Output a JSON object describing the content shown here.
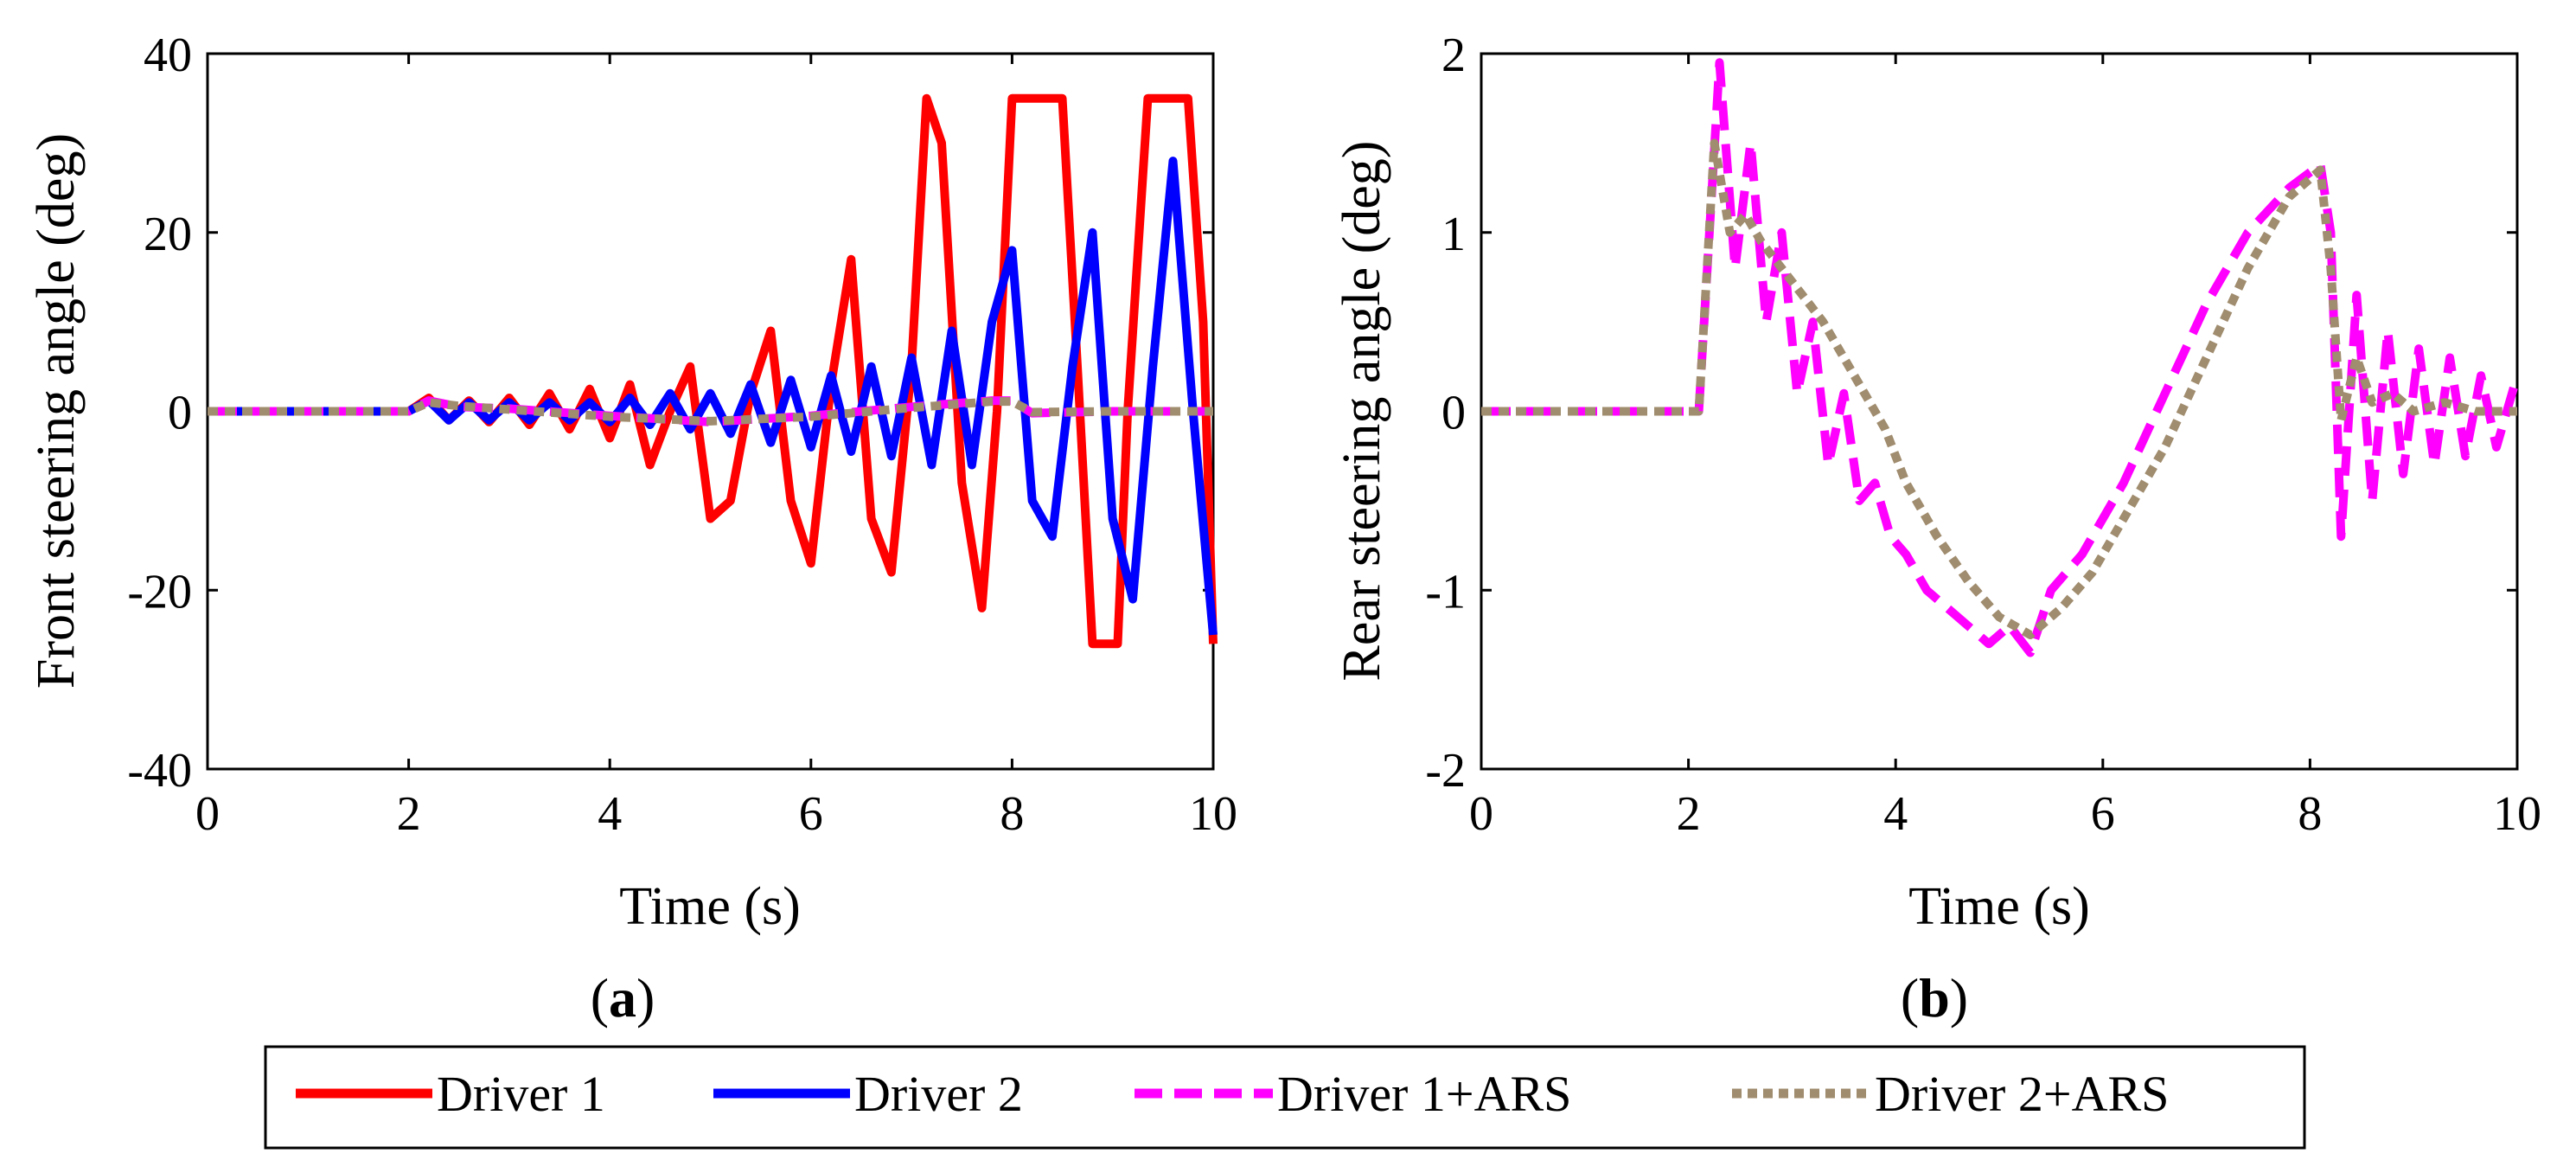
{
  "chart_data": [
    {
      "panel": "a",
      "type": "line",
      "xlabel": "Time (s)",
      "ylabel": "Front steering angle (deg)",
      "xlim": [
        0,
        10
      ],
      "ylim": [
        -40,
        40
      ],
      "xticks": [
        "0",
        "2",
        "4",
        "6",
        "8",
        "10"
      ],
      "yticks": [
        "40",
        "20",
        "0",
        "-20",
        "-40"
      ],
      "series": [
        {
          "name": "Driver 1",
          "color": "#ff0000",
          "style": "solid",
          "x": [
            0,
            0.5,
            1,
            1.5,
            2,
            2.2,
            2.4,
            2.6,
            2.8,
            3,
            3.2,
            3.4,
            3.6,
            3.8,
            4,
            4.2,
            4.4,
            4.6,
            4.8,
            5,
            5.2,
            5.4,
            5.6,
            5.8,
            6,
            6.2,
            6.4,
            6.6,
            6.8,
            7,
            7.15,
            7.3,
            7.5,
            7.7,
            7.85,
            8,
            8.2,
            8.5,
            8.65,
            8.8,
            9.05,
            9.15,
            9.35,
            9.5,
            9.75,
            9.9,
            10
          ],
          "y": [
            0,
            0,
            0,
            0,
            0,
            1.5,
            -1,
            1.2,
            -1.2,
            1.5,
            -1.5,
            2,
            -2,
            2.5,
            -3,
            3,
            -6,
            0,
            5,
            -12,
            -10,
            2,
            9,
            -10,
            -17,
            3,
            17,
            -12,
            -18,
            5,
            35,
            30,
            -8,
            -22,
            0,
            35,
            35,
            35,
            5,
            -26,
            -26,
            0,
            35,
            35,
            35,
            10,
            -26
          ]
        },
        {
          "name": "Driver 2",
          "color": "#0000ff",
          "style": "solid",
          "x": [
            0,
            0.5,
            1,
            1.5,
            2,
            2.2,
            2.4,
            2.6,
            2.8,
            3,
            3.2,
            3.4,
            3.6,
            3.8,
            4,
            4.2,
            4.4,
            4.6,
            4.8,
            5,
            5.2,
            5.4,
            5.6,
            5.8,
            6,
            6.2,
            6.4,
            6.6,
            6.8,
            7,
            7.2,
            7.4,
            7.6,
            7.8,
            8,
            8.2,
            8.4,
            8.6,
            8.8,
            9,
            9.2,
            9.4,
            9.6,
            9.8,
            10
          ],
          "y": [
            0,
            0,
            0,
            0,
            0,
            1.2,
            -1,
            1,
            -1,
            1,
            -1,
            1,
            -1,
            1,
            -1.2,
            1.5,
            -1.5,
            2,
            -2,
            2,
            -2.5,
            3,
            -3.5,
            3.5,
            -4,
            4,
            -4.5,
            5,
            -5,
            6,
            -6,
            9,
            -6,
            10,
            18,
            -10,
            -14,
            5,
            20,
            -12,
            -21,
            5,
            28,
            0,
            -25
          ]
        }
      ]
    },
    {
      "panel": "b",
      "type": "line",
      "xlabel": "Time (s)",
      "ylabel": "Rear steering angle (deg)",
      "xlim": [
        0,
        10
      ],
      "ylim": [
        -2,
        2
      ],
      "xticks": [
        "0",
        "2",
        "4",
        "6",
        "8",
        "10"
      ],
      "yticks": [
        "2",
        "1",
        "0",
        "-1",
        "-2"
      ],
      "series": [
        {
          "name": "Driver 1+ARS",
          "color": "#ff00ff",
          "style": "dashed",
          "x": [
            0,
            0.5,
            1,
            1.5,
            2,
            2.1,
            2.3,
            2.45,
            2.6,
            2.75,
            2.9,
            3.05,
            3.2,
            3.35,
            3.5,
            3.65,
            3.8,
            3.95,
            4.1,
            4.3,
            4.5,
            4.7,
            4.9,
            5.1,
            5.3,
            5.5,
            5.8,
            6.2,
            6.6,
            7,
            7.4,
            7.8,
            8.1,
            8.2,
            8.3,
            8.45,
            8.6,
            8.75,
            8.9,
            9.05,
            9.2,
            9.35,
            9.5,
            9.65,
            9.8,
            10
          ],
          "y": [
            0,
            0,
            0,
            0,
            0,
            0,
            1.95,
            0.8,
            1.5,
            0.5,
            1.0,
            0.1,
            0.5,
            -0.3,
            0.1,
            -0.5,
            -0.4,
            -0.7,
            -0.8,
            -1.0,
            -1.1,
            -1.2,
            -1.3,
            -1.2,
            -1.35,
            -1.0,
            -0.8,
            -0.4,
            0.1,
            0.6,
            1.0,
            1.25,
            1.38,
            1.0,
            -0.7,
            0.65,
            -0.5,
            0.45,
            -0.35,
            0.35,
            -0.3,
            0.3,
            -0.25,
            0.2,
            -0.2,
            0.2
          ]
        },
        {
          "name": "Driver 2+ARS",
          "color": "#a08c6e",
          "style": "dotted",
          "x": [
            0,
            0.5,
            1,
            1.5,
            2,
            2.1,
            2.25,
            2.4,
            2.55,
            2.7,
            2.9,
            3.1,
            3.3,
            3.5,
            3.7,
            3.9,
            4.1,
            4.4,
            4.7,
            5.0,
            5.3,
            5.6,
            5.9,
            6.2,
            6.6,
            7,
            7.4,
            7.8,
            8.1,
            8.2,
            8.3,
            8.45,
            8.6,
            8.8,
            9,
            9.3,
            9.6,
            10
          ],
          "y": [
            0,
            0,
            0,
            0,
            0,
            0,
            1.5,
            1.0,
            1.1,
            0.95,
            0.8,
            0.65,
            0.5,
            0.3,
            0.1,
            -0.1,
            -0.4,
            -0.7,
            -0.95,
            -1.15,
            -1.25,
            -1.1,
            -0.9,
            -0.6,
            -0.2,
            0.3,
            0.8,
            1.2,
            1.35,
            0.8,
            -0.05,
            0.3,
            0.05,
            0.1,
            0.0,
            0.05,
            0.0,
            0.0
          ]
        }
      ]
    }
  ],
  "panel_labels": {
    "a": "a",
    "b": "b"
  },
  "legend": [
    {
      "label": "Driver 1",
      "color": "#ff0000",
      "style": "solid"
    },
    {
      "label": "Driver 2",
      "color": "#0000ff",
      "style": "solid"
    },
    {
      "label": "Driver 1+ARS",
      "color": "#ff00ff",
      "style": "dashed"
    },
    {
      "label": "Driver 2+ARS",
      "color": "#a08c6e",
      "style": "dotted"
    }
  ]
}
